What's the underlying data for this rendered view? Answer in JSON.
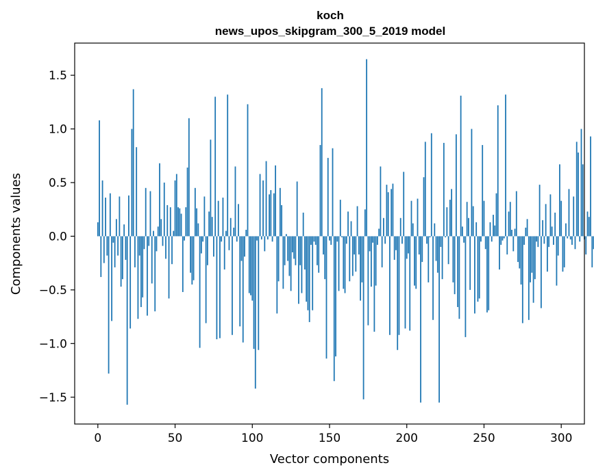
{
  "chart_data": {
    "type": "bar",
    "title": "koch",
    "subtitle": "news_upos_skipgram_300_5_2019 model",
    "xlabel": "Vector components",
    "ylabel": "Components values",
    "xlim": [
      -15,
      315
    ],
    "ylim": [
      -1.75,
      1.8
    ],
    "xticks": [
      0,
      50,
      100,
      150,
      200,
      250,
      300
    ],
    "yticks": [
      -1.5,
      -1.0,
      -0.5,
      0.0,
      0.5,
      1.0,
      1.5
    ],
    "xtick_labels": [
      "0",
      "50",
      "100",
      "150",
      "200",
      "250",
      "300"
    ],
    "ytick_labels": [
      "−1.5",
      "−1.0",
      "−0.5",
      "0.0",
      "0.5",
      "1.0",
      "1.5"
    ],
    "bar_color": "#1f77b4",
    "grid": false,
    "values": [
      0.13,
      1.08,
      -0.38,
      0.52,
      -0.25,
      0.36,
      -0.18,
      -1.28,
      0.4,
      -0.79,
      -0.06,
      -0.29,
      0.16,
      -0.18,
      0.37,
      -0.47,
      -0.4,
      0.11,
      -0.22,
      -1.57,
      0.38,
      -0.86,
      1.0,
      1.37,
      -0.29,
      0.83,
      -0.77,
      -0.18,
      -0.66,
      -0.57,
      -0.12,
      0.45,
      -0.74,
      -0.09,
      0.42,
      -0.44,
      0.05,
      -0.7,
      -0.14,
      0.09,
      0.68,
      0.16,
      -0.09,
      0.5,
      -0.21,
      0.29,
      -0.58,
      0.27,
      -0.26,
      0.05,
      0.52,
      0.58,
      0.27,
      0.26,
      0.21,
      -0.52,
      -0.04,
      0.27,
      0.64,
      1.1,
      -0.34,
      -0.45,
      -0.41,
      0.45,
      0.26,
      0.12,
      -1.04,
      -0.16,
      -0.05,
      0.37,
      -0.81,
      -0.27,
      0.23,
      0.9,
      0.18,
      -0.19,
      1.3,
      -0.96,
      0.33,
      -0.95,
      -0.05,
      0.36,
      -0.31,
      0.05,
      1.32,
      -0.13,
      0.17,
      -0.92,
      0.08,
      0.65,
      -0.05,
      0.3,
      -0.84,
      -0.23,
      -0.99,
      -0.19,
      0.06,
      1.23,
      -0.53,
      -0.55,
      -0.6,
      -1.05,
      -1.42,
      -0.04,
      -1.06,
      0.58,
      -0.03,
      0.52,
      -0.14,
      0.7,
      -0.03,
      0.39,
      0.43,
      -0.05,
      0.4,
      0.66,
      -0.72,
      -0.42,
      0.45,
      0.29,
      -0.49,
      -0.27,
      0.02,
      -0.23,
      -0.37,
      -0.51,
      -0.15,
      -0.21,
      -0.27,
      0.51,
      -0.63,
      -0.27,
      -0.53,
      0.22,
      -0.31,
      -0.61,
      -0.69,
      -0.8,
      -0.08,
      -0.69,
      -0.05,
      -0.08,
      -0.27,
      -0.34,
      0.85,
      1.38,
      -0.17,
      -0.4,
      -1.14,
      0.73,
      -0.04,
      -0.08,
      0.82,
      -1.35,
      -1.12,
      -0.05,
      -0.51,
      0.34,
      -0.01,
      -0.49,
      -0.53,
      -0.07,
      0.23,
      -0.42,
      0.14,
      -0.37,
      -0.17,
      -0.33,
      0.28,
      -0.17,
      -0.6,
      -0.43,
      -1.52,
      0.25,
      1.65,
      -0.83,
      -0.14,
      -0.47,
      -0.06,
      -0.89,
      -0.46,
      -0.08,
      0.07,
      0.65,
      -0.29,
      0.17,
      -0.07,
      0.48,
      0.41,
      -0.92,
      0.44,
      0.49,
      -0.22,
      -0.13,
      -1.06,
      -0.92,
      0.17,
      -0.07,
      0.6,
      -0.86,
      -0.21,
      -0.16,
      -0.88,
      0.33,
      0.12,
      -0.46,
      -0.49,
      0.35,
      -0.17,
      -1.55,
      -0.24,
      0.55,
      0.88,
      -0.07,
      -0.43,
      -0.01,
      0.96,
      -0.78,
      0.12,
      -0.23,
      -0.34,
      -1.55,
      -0.1,
      -0.4,
      0.87,
      -0.01,
      0.27,
      -0.26,
      0.34,
      0.44,
      -0.43,
      -0.54,
      0.95,
      -0.66,
      -0.77,
      1.31,
      0.09,
      -0.06,
      -0.94,
      0.32,
      0.17,
      -0.5,
      1.0,
      0.28,
      -0.72,
      0.13,
      -0.61,
      -0.58,
      -0.05,
      0.85,
      0.33,
      -0.12,
      -0.71,
      -0.69,
      0.13,
      -0.05,
      0.2,
      0.1,
      0.4,
      1.22,
      -0.31,
      -0.08,
      -0.04,
      -0.02,
      1.32,
      -0.17,
      0.23,
      0.32,
      0.06,
      -0.14,
      0.07,
      0.42,
      -0.24,
      -0.3,
      -0.45,
      -0.81,
      -0.08,
      0.08,
      0.16,
      -0.78,
      -0.43,
      -0.34,
      -0.62,
      -0.4,
      -0.05,
      -0.1,
      0.48,
      -0.67,
      0.15,
      -0.07,
      0.3,
      -0.33,
      -0.1,
      0.39,
      0.09,
      -0.08,
      0.22,
      -0.46,
      -0.18,
      0.67,
      0.33,
      -0.33,
      -0.29,
      0.12,
      -0.02,
      0.44,
      -0.03,
      -0.08,
      0.37,
      -0.12,
      0.88,
      0.78,
      -0.05,
      1.0,
      0.67,
      -0.03,
      -0.17,
      0.23,
      0.18,
      0.93,
      -0.29,
      -0.12
    ]
  }
}
